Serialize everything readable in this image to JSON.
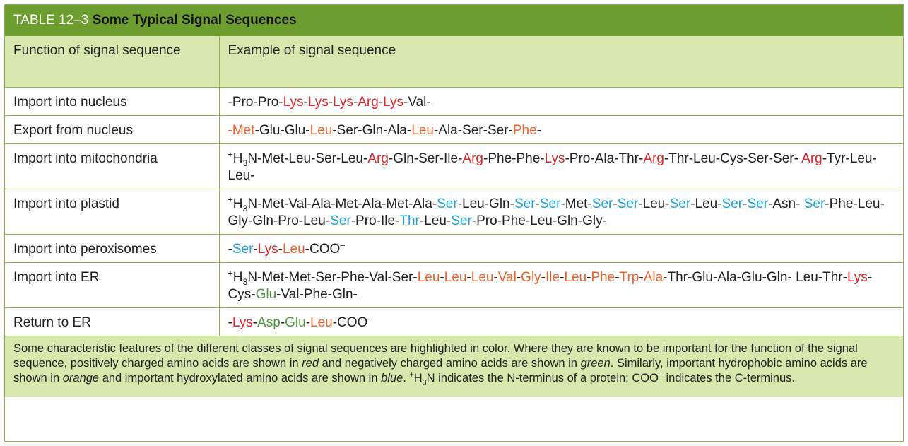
{
  "title": {
    "number": "TABLE 12–3",
    "text": "Some Typical Signal Sequences"
  },
  "columns": [
    "Function of signal sequence",
    "Example of signal sequence"
  ],
  "rows": [
    {
      "function": "Import into nucleus",
      "tall": false,
      "sequence": [
        {
          "t": "-Pro-Pro-",
          "c": ""
        },
        {
          "t": "Lys",
          "c": "red"
        },
        {
          "t": "-",
          "c": ""
        },
        {
          "t": "Lys",
          "c": "red"
        },
        {
          "t": "-",
          "c": ""
        },
        {
          "t": "Lys",
          "c": "red"
        },
        {
          "t": "-",
          "c": ""
        },
        {
          "t": "Arg",
          "c": "red"
        },
        {
          "t": "-",
          "c": ""
        },
        {
          "t": "Lys",
          "c": "red"
        },
        {
          "t": "-Val-",
          "c": ""
        }
      ]
    },
    {
      "function": "Export from nucleus",
      "tall": false,
      "sequence": [
        {
          "t": "-",
          "c": "orange"
        },
        {
          "t": "Met",
          "c": "orange"
        },
        {
          "t": "-Glu-Glu-",
          "c": ""
        },
        {
          "t": "Leu",
          "c": "orange"
        },
        {
          "t": "-Ser-Gln-Ala-",
          "c": ""
        },
        {
          "t": "Leu",
          "c": "orange"
        },
        {
          "t": "-Ala-Ser-Ser-",
          "c": ""
        },
        {
          "t": "Phe",
          "c": "orange"
        },
        {
          "t": "-",
          "c": ""
        }
      ]
    },
    {
      "function": "Import into mitochondria",
      "tall": true,
      "sequence": [
        {
          "t": "+",
          "c": "",
          "sup": true
        },
        {
          "t": "H",
          "c": ""
        },
        {
          "t": "3",
          "c": "",
          "sub": true
        },
        {
          "t": "N-Met-Leu-Ser-Leu-",
          "c": ""
        },
        {
          "t": "Arg",
          "c": "red"
        },
        {
          "t": "-Gln-Ser-Ile-",
          "c": ""
        },
        {
          "t": "Arg",
          "c": "red"
        },
        {
          "t": "-Phe-Phe-",
          "c": ""
        },
        {
          "t": "Lys",
          "c": "red"
        },
        {
          "t": "-Pro-Ala-Thr-",
          "c": ""
        },
        {
          "t": "Arg",
          "c": "red"
        },
        {
          "t": "-Thr-Leu-Cys-Ser-Ser- ",
          "c": ""
        },
        {
          "t": "Arg",
          "c": "red"
        },
        {
          "t": "-Tyr-Leu-Leu-",
          "c": ""
        }
      ]
    },
    {
      "function": "Import into plastid",
      "tall": true,
      "sequence": [
        {
          "t": "+",
          "c": "",
          "sup": true
        },
        {
          "t": "H",
          "c": ""
        },
        {
          "t": "3",
          "c": "",
          "sub": true
        },
        {
          "t": "N-Met-Val-Ala-Met-Ala-Met-Ala-",
          "c": ""
        },
        {
          "t": "Ser",
          "c": "blue"
        },
        {
          "t": "-Leu-Gln-",
          "c": ""
        },
        {
          "t": "Ser",
          "c": "blue"
        },
        {
          "t": "-",
          "c": ""
        },
        {
          "t": "Ser",
          "c": "blue"
        },
        {
          "t": "-Met-",
          "c": ""
        },
        {
          "t": "Ser",
          "c": "blue"
        },
        {
          "t": "-",
          "c": ""
        },
        {
          "t": "Ser",
          "c": "blue"
        },
        {
          "t": "-Leu-",
          "c": ""
        },
        {
          "t": "Ser",
          "c": "blue"
        },
        {
          "t": "-Leu-",
          "c": ""
        },
        {
          "t": "Ser",
          "c": "blue"
        },
        {
          "t": "-",
          "c": ""
        },
        {
          "t": "Ser",
          "c": "blue"
        },
        {
          "t": "-Asn- ",
          "c": ""
        },
        {
          "t": "Ser",
          "c": "blue"
        },
        {
          "t": "-Phe-Leu-Gly-Gln-Pro-Leu-",
          "c": ""
        },
        {
          "t": "Ser",
          "c": "blue"
        },
        {
          "t": "-Pro-Ile-",
          "c": ""
        },
        {
          "t": "Thr",
          "c": "blue"
        },
        {
          "t": "-Leu-",
          "c": ""
        },
        {
          "t": "Ser",
          "c": "blue"
        },
        {
          "t": "-Pro-Phe-Leu-Gln-Gly-",
          "c": ""
        }
      ]
    },
    {
      "function": "Import into peroxisomes",
      "tall": false,
      "sequence": [
        {
          "t": "-",
          "c": ""
        },
        {
          "t": "Ser",
          "c": "blue"
        },
        {
          "t": "-",
          "c": ""
        },
        {
          "t": "Lys",
          "c": "red"
        },
        {
          "t": "-",
          "c": ""
        },
        {
          "t": "Leu",
          "c": "orange"
        },
        {
          "t": "-COO",
          "c": ""
        },
        {
          "t": "–",
          "c": "",
          "sup": true
        }
      ]
    },
    {
      "function": "Import into ER",
      "tall": true,
      "sequence": [
        {
          "t": "+",
          "c": "",
          "sup": true
        },
        {
          "t": "H",
          "c": ""
        },
        {
          "t": "3",
          "c": "",
          "sub": true
        },
        {
          "t": "N-Met-Met-Ser-Phe-Val-Ser-",
          "c": ""
        },
        {
          "t": "Leu",
          "c": "orange"
        },
        {
          "t": "-",
          "c": ""
        },
        {
          "t": "Leu",
          "c": "orange"
        },
        {
          "t": "-",
          "c": ""
        },
        {
          "t": "Leu",
          "c": "orange"
        },
        {
          "t": "-",
          "c": ""
        },
        {
          "t": "Val",
          "c": "orange"
        },
        {
          "t": "-",
          "c": ""
        },
        {
          "t": "Gly",
          "c": "orange"
        },
        {
          "t": "-",
          "c": ""
        },
        {
          "t": "Ile",
          "c": "orange"
        },
        {
          "t": "-",
          "c": ""
        },
        {
          "t": "Leu",
          "c": "orange"
        },
        {
          "t": "-",
          "c": ""
        },
        {
          "t": "Phe",
          "c": "orange"
        },
        {
          "t": "-",
          "c": ""
        },
        {
          "t": "Trp",
          "c": "orange"
        },
        {
          "t": "-",
          "c": ""
        },
        {
          "t": "Ala",
          "c": "orange"
        },
        {
          "t": "-Thr-Glu-Ala-Glu-Gln- Leu-Thr-",
          "c": ""
        },
        {
          "t": "Lys",
          "c": "red"
        },
        {
          "t": "-Cys-",
          "c": ""
        },
        {
          "t": "Glu",
          "c": "green"
        },
        {
          "t": "-Val-Phe-Gln-",
          "c": ""
        }
      ]
    },
    {
      "function": "Return to ER",
      "tall": false,
      "sequence": [
        {
          "t": "-",
          "c": ""
        },
        {
          "t": "Lys",
          "c": "red"
        },
        {
          "t": "-",
          "c": ""
        },
        {
          "t": "Asp",
          "c": "green"
        },
        {
          "t": "-",
          "c": ""
        },
        {
          "t": "Glu",
          "c": "green"
        },
        {
          "t": "-",
          "c": ""
        },
        {
          "t": "Leu",
          "c": "orange"
        },
        {
          "t": "-COO",
          "c": ""
        },
        {
          "t": "–",
          "c": "",
          "sup": true
        }
      ]
    }
  ],
  "footnote": [
    {
      "t": "Some characteristic features of the different classes of signal sequences are highlighted in color. Where they are known to be important for the function of the signal sequence, positively charged amino acids are shown in ",
      "i": false
    },
    {
      "t": "red",
      "i": true
    },
    {
      "t": " and negatively charged amino acids are shown in ",
      "i": false
    },
    {
      "t": "green",
      "i": true
    },
    {
      "t": ". Similarly, important hydrophobic amino acids are shown in ",
      "i": false
    },
    {
      "t": "orange",
      "i": true
    },
    {
      "t": " and important hydroxylated amino acids are shown in ",
      "i": false
    },
    {
      "t": "blue",
      "i": true
    },
    {
      "t": ". ",
      "i": false
    },
    {
      "t": "+",
      "i": false,
      "sup": true
    },
    {
      "t": "H",
      "i": false
    },
    {
      "t": "3",
      "i": false,
      "sub": true
    },
    {
      "t": "N indicates the N-terminus of a protein; COO",
      "i": false
    },
    {
      "t": "–",
      "i": false,
      "sup": true
    },
    {
      "t": " indicates the C-terminus.",
      "i": false
    }
  ],
  "colors": {
    "red": "#e0262b",
    "orange": "#f0622a",
    "blue": "#1ea3d9",
    "green": "#4a9a3a",
    "header_bg": "#6e9d2f",
    "light_bg": "#d8e7ad"
  }
}
